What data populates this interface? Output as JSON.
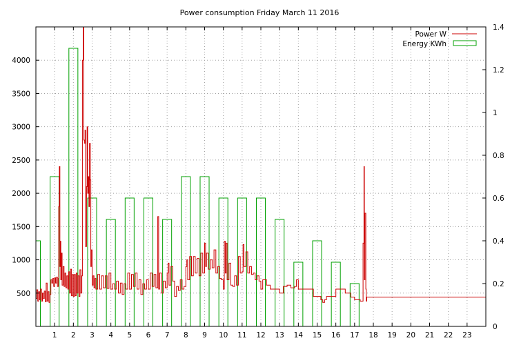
{
  "chart_data": {
    "type": "bar+line",
    "title": "Power consumption Friday March 11 2016",
    "xlabel": "",
    "ylabel": "",
    "y2label": "",
    "grid": true,
    "legend_position": "top-right",
    "xlim": [
      0,
      24
    ],
    "ylim": [
      0,
      4500
    ],
    "y2lim": [
      0,
      1.4
    ],
    "x_ticks": [
      1,
      2,
      3,
      4,
      5,
      6,
      7,
      8,
      9,
      10,
      11,
      12,
      13,
      14,
      15,
      16,
      17,
      18,
      19,
      20,
      21,
      22,
      23
    ],
    "y_ticks": [
      500,
      1000,
      1500,
      2000,
      2500,
      3000,
      3500,
      4000
    ],
    "y2_ticks": [
      0,
      0.2,
      0.4,
      0.6,
      0.8,
      1,
      1.2,
      1.4
    ],
    "y2_tick_labels": [
      "0",
      "0.2",
      "0.4",
      "0.6",
      "0.8",
      "1",
      "1.2",
      "1.4"
    ],
    "series": [
      {
        "name": "Power W",
        "color": "#cc0000",
        "axis": "y",
        "style": "step",
        "points": [
          [
            0.0,
            420
          ],
          [
            0.05,
            550
          ],
          [
            0.1,
            380
          ],
          [
            0.15,
            520
          ],
          [
            0.2,
            400
          ],
          [
            0.25,
            560
          ],
          [
            0.3,
            380
          ],
          [
            0.35,
            500
          ],
          [
            0.4,
            420
          ],
          [
            0.45,
            530
          ],
          [
            0.5,
            370
          ],
          [
            0.55,
            650
          ],
          [
            0.6,
            380
          ],
          [
            0.65,
            520
          ],
          [
            0.7,
            360
          ],
          [
            0.75,
            480
          ],
          [
            0.8,
            700
          ],
          [
            0.85,
            650
          ],
          [
            0.9,
            720
          ],
          [
            0.95,
            600
          ],
          [
            1.0,
            730
          ],
          [
            1.05,
            650
          ],
          [
            1.1,
            740
          ],
          [
            1.15,
            600
          ],
          [
            1.2,
            720
          ],
          [
            1.22,
            1800
          ],
          [
            1.25,
            2400
          ],
          [
            1.28,
            900
          ],
          [
            1.3,
            1280
          ],
          [
            1.33,
            700
          ],
          [
            1.36,
            1100
          ],
          [
            1.4,
            620
          ],
          [
            1.45,
            900
          ],
          [
            1.5,
            600
          ],
          [
            1.55,
            800
          ],
          [
            1.6,
            580
          ],
          [
            1.65,
            760
          ],
          [
            1.7,
            560
          ],
          [
            1.75,
            820
          ],
          [
            1.8,
            500
          ],
          [
            1.85,
            860
          ],
          [
            1.9,
            460
          ],
          [
            1.95,
            780
          ],
          [
            2.0,
            450
          ],
          [
            2.05,
            780
          ],
          [
            2.1,
            460
          ],
          [
            2.15,
            800
          ],
          [
            2.2,
            500
          ],
          [
            2.25,
            760
          ],
          [
            2.3,
            450
          ],
          [
            2.35,
            850
          ],
          [
            2.4,
            500
          ],
          [
            2.45,
            760
          ],
          [
            2.48,
            4000
          ],
          [
            2.52,
            4500
          ],
          [
            2.55,
            2800
          ],
          [
            2.6,
            2750
          ],
          [
            2.62,
            2950
          ],
          [
            2.65,
            1200
          ],
          [
            2.7,
            2100
          ],
          [
            2.73,
            3000
          ],
          [
            2.76,
            2000
          ],
          [
            2.8,
            2250
          ],
          [
            2.83,
            1800
          ],
          [
            2.86,
            2750
          ],
          [
            2.9,
            2200
          ],
          [
            2.93,
            900
          ],
          [
            2.96,
            1150
          ],
          [
            3.0,
            620
          ],
          [
            3.05,
            760
          ],
          [
            3.1,
            580
          ],
          [
            3.15,
            720
          ],
          [
            3.2,
            560
          ],
          [
            3.3,
            780
          ],
          [
            3.4,
            560
          ],
          [
            3.5,
            760
          ],
          [
            3.6,
            580
          ],
          [
            3.7,
            760
          ],
          [
            3.8,
            570
          ],
          [
            3.9,
            800
          ],
          [
            4.0,
            560
          ],
          [
            4.1,
            640
          ],
          [
            4.2,
            560
          ],
          [
            4.3,
            680
          ],
          [
            4.4,
            500
          ],
          [
            4.5,
            650
          ],
          [
            4.6,
            480
          ],
          [
            4.7,
            640
          ],
          [
            4.8,
            560
          ],
          [
            4.9,
            800
          ],
          [
            5.0,
            560
          ],
          [
            5.1,
            780
          ],
          [
            5.2,
            600
          ],
          [
            5.3,
            800
          ],
          [
            5.4,
            560
          ],
          [
            5.5,
            700
          ],
          [
            5.6,
            480
          ],
          [
            5.7,
            640
          ],
          [
            5.8,
            560
          ],
          [
            5.9,
            700
          ],
          [
            6.0,
            560
          ],
          [
            6.1,
            800
          ],
          [
            6.2,
            600
          ],
          [
            6.3,
            780
          ],
          [
            6.4,
            580
          ],
          [
            6.5,
            1650
          ],
          [
            6.55,
            560
          ],
          [
            6.6,
            800
          ],
          [
            6.7,
            500
          ],
          [
            6.8,
            680
          ],
          [
            6.9,
            580
          ],
          [
            7.0,
            800
          ],
          [
            7.05,
            950
          ],
          [
            7.1,
            620
          ],
          [
            7.2,
            900
          ],
          [
            7.3,
            680
          ],
          [
            7.4,
            450
          ],
          [
            7.5,
            600
          ],
          [
            7.6,
            540
          ],
          [
            7.7,
            700
          ],
          [
            7.8,
            560
          ],
          [
            7.9,
            600
          ],
          [
            8.0,
            900
          ],
          [
            8.05,
            1000
          ],
          [
            8.1,
            700
          ],
          [
            8.2,
            1050
          ],
          [
            8.3,
            760
          ],
          [
            8.4,
            1050
          ],
          [
            8.5,
            800
          ],
          [
            8.6,
            1020
          ],
          [
            8.7,
            760
          ],
          [
            8.8,
            1100
          ],
          [
            8.9,
            800
          ],
          [
            9.0,
            1250
          ],
          [
            9.05,
            900
          ],
          [
            9.1,
            1100
          ],
          [
            9.2,
            860
          ],
          [
            9.3,
            1000
          ],
          [
            9.4,
            880
          ],
          [
            9.5,
            1150
          ],
          [
            9.6,
            800
          ],
          [
            9.7,
            900
          ],
          [
            9.8,
            720
          ],
          [
            9.9,
            700
          ],
          [
            10.0,
            560
          ],
          [
            10.05,
            1280
          ],
          [
            10.1,
            800
          ],
          [
            10.15,
            1250
          ],
          [
            10.2,
            700
          ],
          [
            10.3,
            950
          ],
          [
            10.4,
            620
          ],
          [
            10.5,
            600
          ],
          [
            10.6,
            760
          ],
          [
            10.7,
            620
          ],
          [
            10.8,
            1050
          ],
          [
            10.9,
            800
          ],
          [
            11.0,
            820
          ],
          [
            11.05,
            1230
          ],
          [
            11.1,
            900
          ],
          [
            11.2,
            1120
          ],
          [
            11.3,
            800
          ],
          [
            11.4,
            900
          ],
          [
            11.5,
            780
          ],
          [
            11.6,
            800
          ],
          [
            11.7,
            700
          ],
          [
            11.8,
            760
          ],
          [
            11.9,
            680
          ],
          [
            12.0,
            560
          ],
          [
            12.1,
            700
          ],
          [
            12.3,
            620
          ],
          [
            12.5,
            560
          ],
          [
            13.0,
            500
          ],
          [
            13.2,
            600
          ],
          [
            13.4,
            620
          ],
          [
            13.6,
            580
          ],
          [
            13.8,
            600
          ],
          [
            13.9,
            700
          ],
          [
            14.0,
            560
          ],
          [
            14.5,
            560
          ],
          [
            14.8,
            450
          ],
          [
            15.0,
            450
          ],
          [
            15.2,
            400
          ],
          [
            15.3,
            360
          ],
          [
            15.4,
            400
          ],
          [
            15.5,
            450
          ],
          [
            15.8,
            450
          ],
          [
            16.0,
            560
          ],
          [
            16.2,
            560
          ],
          [
            16.5,
            500
          ],
          [
            16.8,
            440
          ],
          [
            17.0,
            400
          ],
          [
            17.2,
            400
          ],
          [
            17.3,
            380
          ],
          [
            17.45,
            1250
          ],
          [
            17.5,
            2400
          ],
          [
            17.52,
            700
          ],
          [
            17.55,
            1700
          ],
          [
            17.6,
            560
          ],
          [
            17.62,
            380
          ],
          [
            17.65,
            440
          ],
          [
            18.0,
            440
          ],
          [
            20.0,
            440
          ],
          [
            22.0,
            440
          ],
          [
            24.0,
            440
          ]
        ]
      },
      {
        "name": "Energy KWh",
        "color": "#00a000",
        "axis": "y2",
        "style": "bars",
        "x": [
          0,
          1,
          2,
          3,
          4,
          5,
          6,
          7,
          8,
          9,
          10,
          11,
          12,
          13,
          14,
          15,
          16,
          17
        ],
        "values": [
          0.4,
          0.7,
          1.3,
          0.6,
          0.5,
          0.6,
          0.6,
          0.5,
          0.7,
          0.7,
          0.6,
          0.6,
          0.6,
          0.5,
          0.3,
          0.4,
          0.3,
          0.2
        ]
      }
    ]
  }
}
